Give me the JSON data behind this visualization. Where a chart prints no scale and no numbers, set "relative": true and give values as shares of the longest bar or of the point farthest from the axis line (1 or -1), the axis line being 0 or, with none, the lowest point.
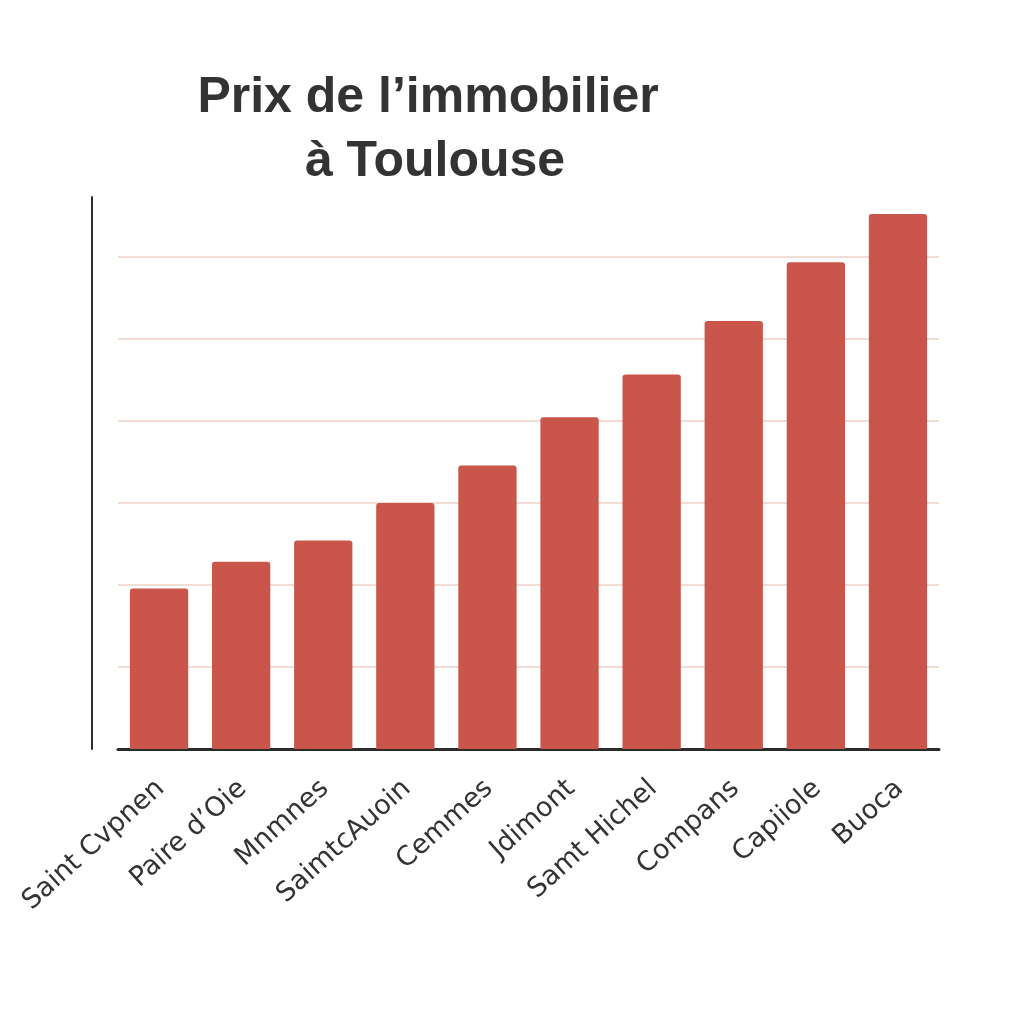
{
  "chart_data": {
    "type": "bar",
    "title": "Prix de l’immobilier à Toulouse",
    "categories": [
      "Saint Cvpnen",
      "Paire d’Oie",
      "Mnmnes",
      "SaimtcAuoin",
      "Cemmes",
      "Jdimont",
      "Samt Hichel",
      "Compans",
      "Capiiole",
      "Buoca"
    ],
    "values": [
      0.3,
      0.35,
      0.39,
      0.46,
      0.53,
      0.62,
      0.7,
      0.8,
      0.91,
      1
    ],
    "color": "#c9554b",
    "relative": true,
    "grid": "y"
  }
}
